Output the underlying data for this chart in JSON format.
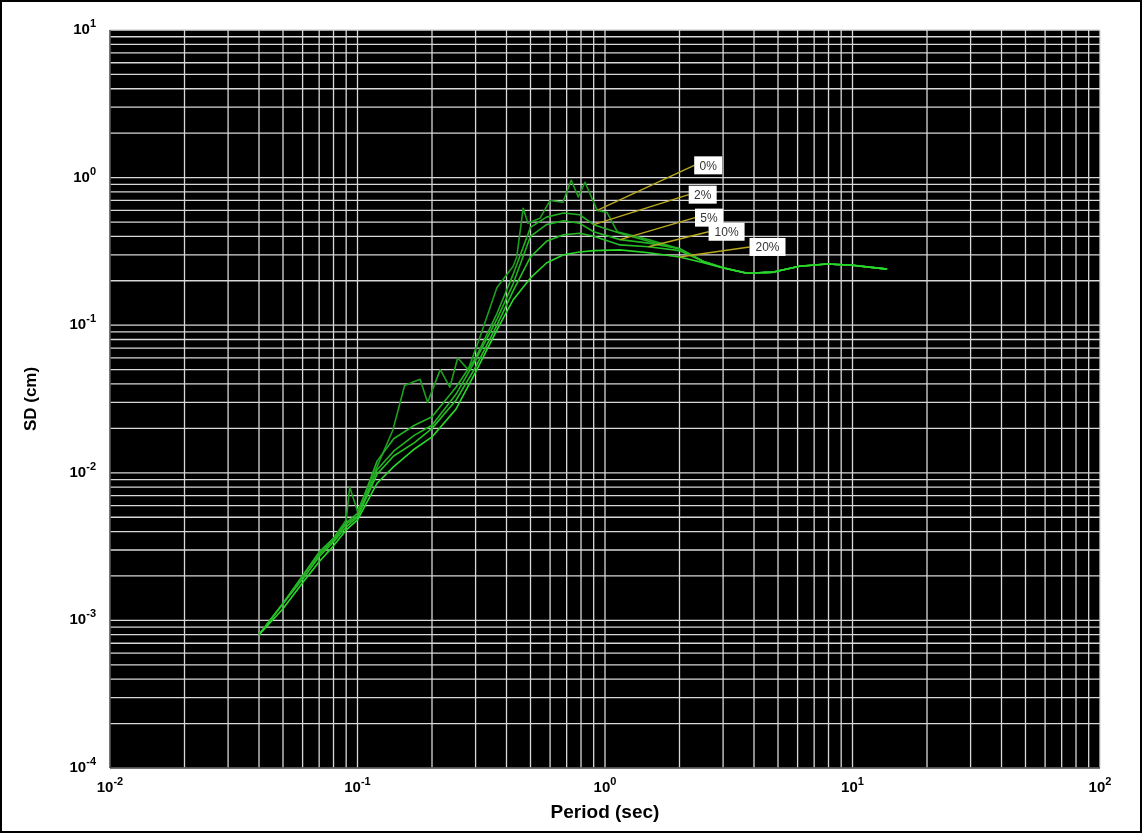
{
  "chart_data": {
    "type": "line",
    "xlabel": "Period (sec)",
    "ylabel": "SD (cm)",
    "log": "xy",
    "grid": true,
    "legend": false,
    "marker": "none",
    "line_style": "solid",
    "xlim": [
      0.01,
      100
    ],
    "ylim": [
      0.0001,
      10
    ],
    "xticks": [
      {
        "value": 0.01,
        "label": "10$^{-2}$"
      },
      {
        "value": 0.02,
        "label": null
      },
      {
        "value": 0.03,
        "label": null
      },
      {
        "value": 0.04,
        "label": null
      },
      {
        "value": 0.05,
        "label": null
      },
      {
        "value": 0.06,
        "label": null
      },
      {
        "value": 0.07,
        "label": null
      },
      {
        "value": 0.08,
        "label": null
      },
      {
        "value": 0.09,
        "label": null
      },
      {
        "value": 0.1,
        "label": "10$^{-1}$"
      },
      {
        "value": 0.2,
        "label": null
      },
      {
        "value": 0.3,
        "label": null
      },
      {
        "value": 0.4,
        "label": null
      },
      {
        "value": 0.5,
        "label": null
      },
      {
        "value": 0.6,
        "label": null
      },
      {
        "value": 0.7,
        "label": null
      },
      {
        "value": 0.8,
        "label": null
      },
      {
        "value": 0.9,
        "label": null
      },
      {
        "value": 1,
        "label": "10$^{0}$"
      },
      {
        "value": 2,
        "label": null
      },
      {
        "value": 3,
        "label": null
      },
      {
        "value": 4,
        "label": null
      },
      {
        "value": 5,
        "label": null
      },
      {
        "value": 6,
        "label": null
      },
      {
        "value": 7,
        "label": null
      },
      {
        "value": 8,
        "label": null
      },
      {
        "value": 9,
        "label": null
      },
      {
        "value": 10,
        "label": "10$^{1}$"
      },
      {
        "value": 20,
        "label": null
      },
      {
        "value": 30,
        "label": null
      },
      {
        "value": 40,
        "label": null
      },
      {
        "value": 50,
        "label": null
      },
      {
        "value": 60,
        "label": null
      },
      {
        "value": 70,
        "label": null
      },
      {
        "value": 80,
        "label": null
      },
      {
        "value": 90,
        "label": null
      },
      {
        "value": 100,
        "label": "10$^{2}$"
      }
    ],
    "yticks": [
      {
        "value": 0.0001,
        "label": "10$^{-4}$"
      },
      {
        "value": 0.0002,
        "label": null
      },
      {
        "value": 0.0003,
        "label": null
      },
      {
        "value": 0.0004,
        "label": null
      },
      {
        "value": 0.0005,
        "label": null
      },
      {
        "value": 0.0006,
        "label": null
      },
      {
        "value": 0.0007,
        "label": null
      },
      {
        "value": 0.0008,
        "label": null
      },
      {
        "value": 0.0009,
        "label": null
      },
      {
        "value": 0.001,
        "label": "10$^{-3}$"
      },
      {
        "value": 0.002,
        "label": null
      },
      {
        "value": 0.003,
        "label": null
      },
      {
        "value": 0.004,
        "label": null
      },
      {
        "value": 0.005,
        "label": null
      },
      {
        "value": 0.006,
        "label": null
      },
      {
        "value": 0.007,
        "label": null
      },
      {
        "value": 0.008,
        "label": null
      },
      {
        "value": 0.009,
        "label": null
      },
      {
        "value": 0.01,
        "label": "10$^{-2}$"
      },
      {
        "value": 0.02,
        "label": null
      },
      {
        "value": 0.03,
        "label": null
      },
      {
        "value": 0.04,
        "label": null
      },
      {
        "value": 0.05,
        "label": null
      },
      {
        "value": 0.06,
        "label": null
      },
      {
        "value": 0.07,
        "label": null
      },
      {
        "value": 0.08,
        "label": null
      },
      {
        "value": 0.09,
        "label": null
      },
      {
        "value": 0.1,
        "label": "10$^{-1}$"
      },
      {
        "value": 0.2,
        "label": null
      },
      {
        "value": 0.3,
        "label": null
      },
      {
        "value": 0.4,
        "label": null
      },
      {
        "value": 0.5,
        "label": null
      },
      {
        "value": 0.6,
        "label": null
      },
      {
        "value": 0.7,
        "label": null
      },
      {
        "value": 0.8,
        "label": null
      },
      {
        "value": 0.9,
        "label": null
      },
      {
        "value": 1,
        "label": "10$^{0}$"
      },
      {
        "value": 2,
        "label": null
      },
      {
        "value": 3,
        "label": null
      },
      {
        "value": 4,
        "label": null
      },
      {
        "value": 5,
        "label": null
      },
      {
        "value": 6,
        "label": null
      },
      {
        "value": 7,
        "label": null
      },
      {
        "value": 8,
        "label": null
      },
      {
        "value": 9,
        "label": null
      },
      {
        "value": 10,
        "label": "10$^{1}$"
      }
    ],
    "series": [
      {
        "name": "0%",
        "color": "#1e9e1e",
        "x": [
          0.04,
          0.05,
          0.06,
          0.07,
          0.08,
          0.09,
          0.093,
          0.1,
          0.12,
          0.139,
          0.155,
          0.179,
          0.192,
          0.216,
          0.236,
          0.254,
          0.28,
          0.31,
          0.366,
          0.425,
          0.44,
          0.467,
          0.488,
          0.546,
          0.6,
          0.676,
          0.73,
          0.78,
          0.83,
          0.93,
          1.02,
          1.12,
          1.5,
          2,
          2.5,
          3,
          3.75,
          4.8,
          6.1,
          7.9,
          10,
          13.8
        ],
        "values": [
          0.0008,
          0.0013,
          0.002,
          0.0029,
          0.0036,
          0.0048,
          0.008,
          0.0055,
          0.011,
          0.0195,
          0.039,
          0.043,
          0.03,
          0.05,
          0.038,
          0.06,
          0.05,
          0.08,
          0.18,
          0.25,
          0.29,
          0.62,
          0.49,
          0.53,
          0.7,
          0.68,
          0.96,
          0.74,
          0.93,
          0.6,
          0.58,
          0.43,
          0.38,
          0.33,
          0.27,
          0.245,
          0.225,
          0.229,
          0.251,
          0.26,
          0.255,
          0.24
        ]
      },
      {
        "name": "2%",
        "color": "#22b022",
        "x": [
          0.04,
          0.05,
          0.06,
          0.07,
          0.08,
          0.09,
          0.1,
          0.12,
          0.14,
          0.17,
          0.2,
          0.25,
          0.3,
          0.366,
          0.425,
          0.5,
          0.58,
          0.68,
          0.79,
          0.9,
          1.15,
          1.5,
          2,
          2.5,
          3,
          3.75,
          4.8,
          6.1,
          7.9,
          10,
          13.8
        ],
        "values": [
          0.0008,
          0.0013,
          0.002,
          0.0029,
          0.0036,
          0.0046,
          0.0053,
          0.012,
          0.017,
          0.021,
          0.024,
          0.038,
          0.06,
          0.12,
          0.22,
          0.46,
          0.54,
          0.575,
          0.56,
          0.48,
          0.42,
          0.37,
          0.33,
          0.27,
          0.245,
          0.225,
          0.229,
          0.251,
          0.26,
          0.255,
          0.24
        ]
      },
      {
        "name": "5%",
        "color": "#22b422",
        "x": [
          0.04,
          0.05,
          0.06,
          0.07,
          0.08,
          0.09,
          0.1,
          0.12,
          0.14,
          0.17,
          0.2,
          0.25,
          0.3,
          0.366,
          0.425,
          0.5,
          0.58,
          0.68,
          0.79,
          0.9,
          1.15,
          1.5,
          2,
          2.5,
          3,
          3.75,
          4.8,
          6.1,
          7.9,
          10,
          13.8
        ],
        "values": [
          0.0008,
          0.0013,
          0.002,
          0.0028,
          0.0035,
          0.0045,
          0.0051,
          0.0105,
          0.014,
          0.018,
          0.021,
          0.034,
          0.058,
          0.11,
          0.19,
          0.4,
          0.48,
          0.51,
          0.49,
          0.43,
          0.38,
          0.36,
          0.33,
          0.27,
          0.245,
          0.225,
          0.229,
          0.251,
          0.26,
          0.255,
          0.24
        ]
      },
      {
        "name": "10%",
        "color": "#26c026",
        "x": [
          0.04,
          0.05,
          0.06,
          0.07,
          0.08,
          0.09,
          0.1,
          0.12,
          0.14,
          0.17,
          0.2,
          0.25,
          0.3,
          0.366,
          0.425,
          0.5,
          0.58,
          0.68,
          0.79,
          0.9,
          1.15,
          1.5,
          2,
          2.5,
          3,
          3.75,
          4.8,
          6.1,
          7.9,
          10,
          13.8
        ],
        "values": [
          0.0008,
          0.0013,
          0.0019,
          0.0027,
          0.0034,
          0.0043,
          0.005,
          0.0098,
          0.013,
          0.016,
          0.02,
          0.031,
          0.052,
          0.1,
          0.17,
          0.29,
          0.37,
          0.41,
          0.42,
          0.4,
          0.35,
          0.34,
          0.32,
          0.27,
          0.245,
          0.225,
          0.229,
          0.251,
          0.26,
          0.255,
          0.24
        ]
      },
      {
        "name": "20%",
        "color": "#2ad82a",
        "x": [
          0.04,
          0.05,
          0.06,
          0.07,
          0.08,
          0.09,
          0.1,
          0.12,
          0.14,
          0.17,
          0.2,
          0.25,
          0.3,
          0.366,
          0.425,
          0.5,
          0.58,
          0.68,
          0.79,
          0.9,
          1.15,
          1.5,
          2,
          2.5,
          3,
          3.75,
          4.8,
          6.1,
          7.9,
          10,
          13.8
        ],
        "values": [
          0.0008,
          0.0012,
          0.0018,
          0.0025,
          0.0032,
          0.0041,
          0.0048,
          0.0085,
          0.011,
          0.0145,
          0.0175,
          0.027,
          0.048,
          0.093,
          0.148,
          0.209,
          0.264,
          0.3,
          0.313,
          0.32,
          0.324,
          0.31,
          0.29,
          0.265,
          0.244,
          0.225,
          0.229,
          0.251,
          0.26,
          0.255,
          0.24
        ]
      }
    ]
  }
}
